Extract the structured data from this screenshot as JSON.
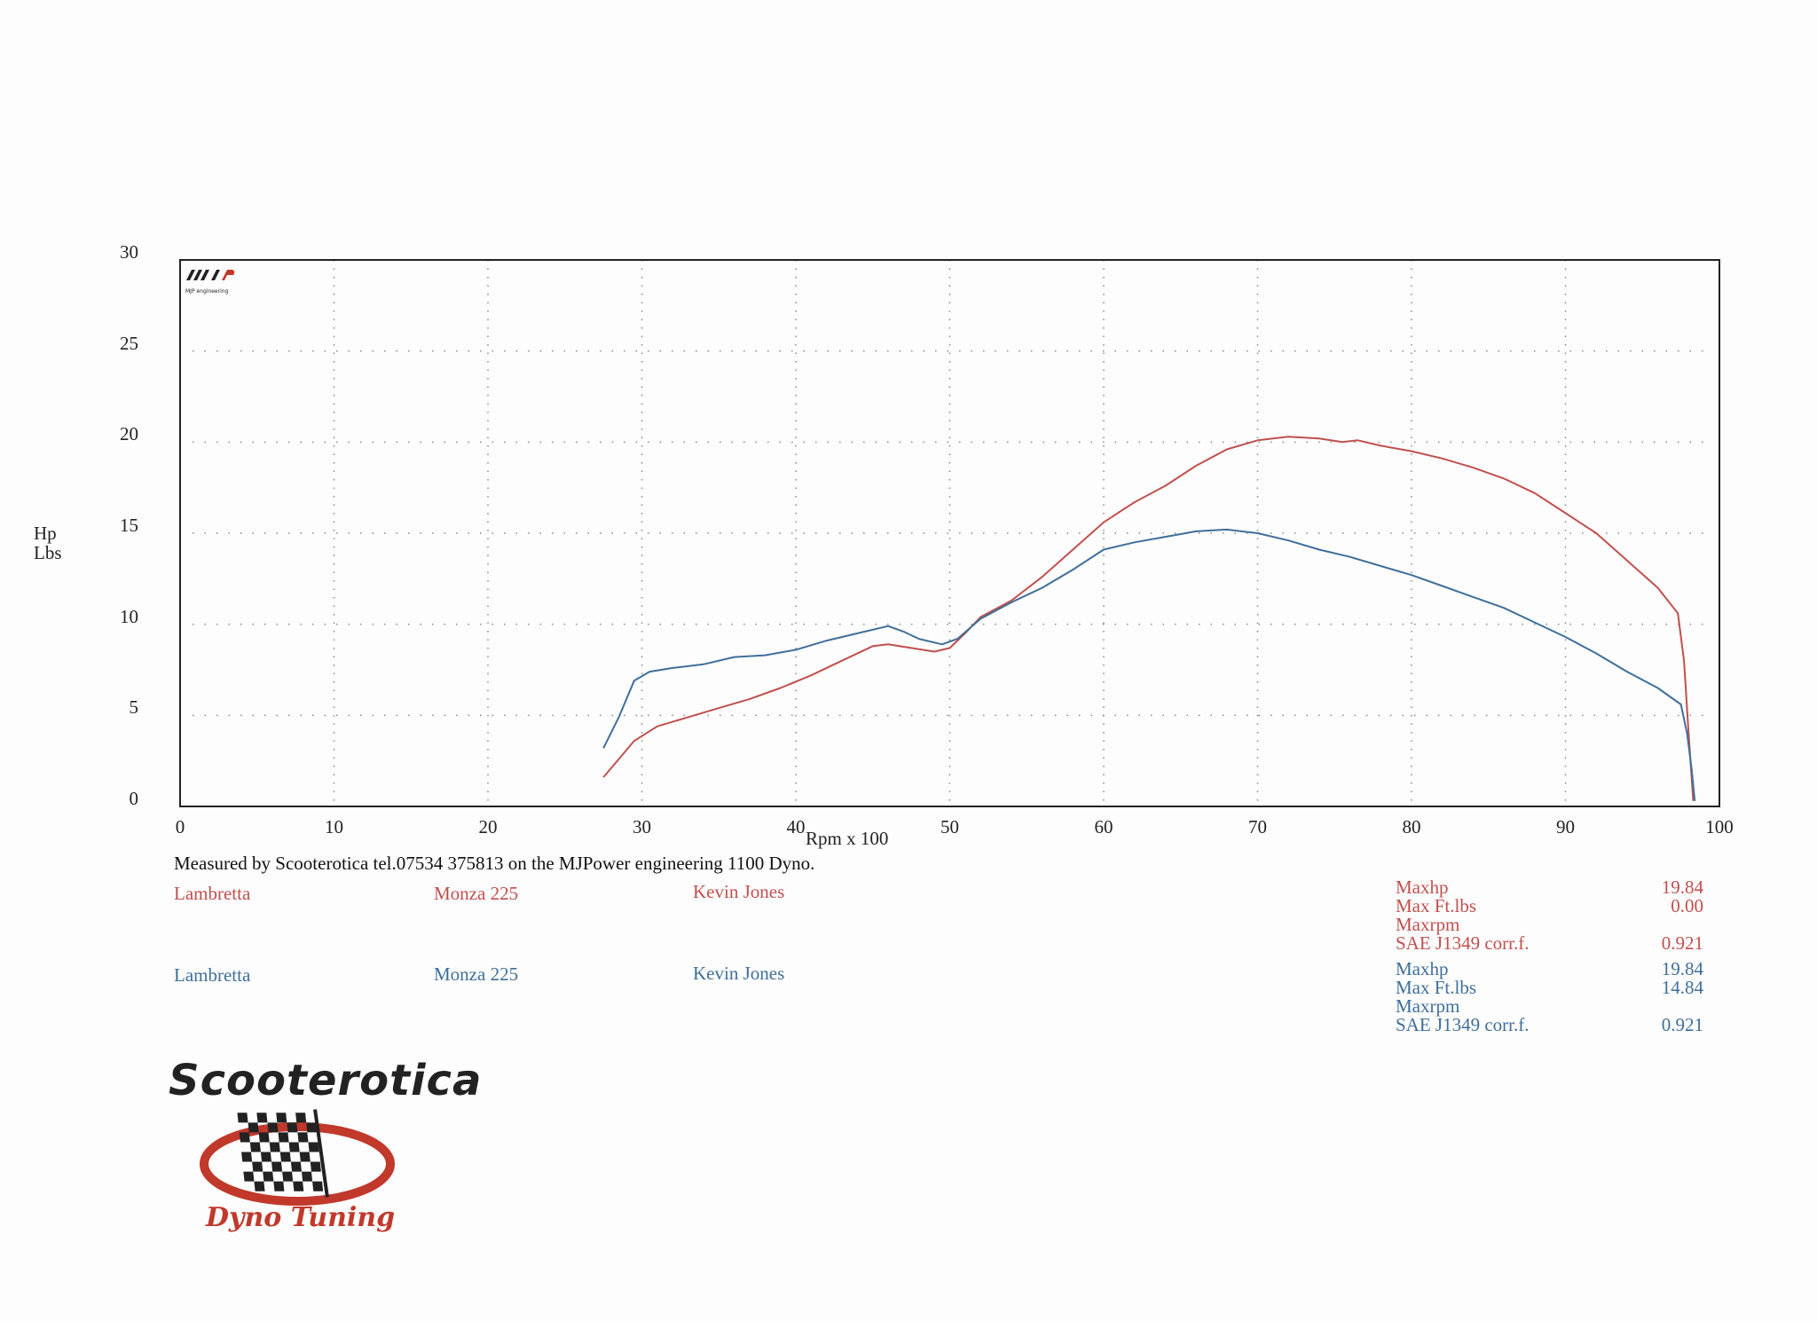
{
  "chart_data": {
    "type": "line",
    "xlabel": "Rpm x 100",
    "ylabel_lines": [
      "Hp",
      "Lbs"
    ],
    "xlim": [
      0,
      100
    ],
    "ylim": [
      0,
      30
    ],
    "x_ticks": [
      0,
      10,
      20,
      30,
      40,
      50,
      60,
      70,
      80,
      90,
      100
    ],
    "y_ticks": [
      0,
      5,
      10,
      15,
      20,
      25,
      30
    ],
    "grid": "dotted",
    "series": [
      {
        "color": "#c0504d",
        "points": [
          [
            27.5,
            1.6
          ],
          [
            28.5,
            2.6
          ],
          [
            29.5,
            3.6
          ],
          [
            31,
            4.4
          ],
          [
            33,
            4.9
          ],
          [
            35,
            5.4
          ],
          [
            37,
            5.9
          ],
          [
            39,
            6.5
          ],
          [
            41,
            7.2
          ],
          [
            43,
            8.0
          ],
          [
            45,
            8.8
          ],
          [
            46,
            8.9
          ],
          [
            47.5,
            8.7
          ],
          [
            49,
            8.5
          ],
          [
            50,
            8.7
          ],
          [
            51,
            9.5
          ],
          [
            52,
            10.4
          ],
          [
            54,
            11.3
          ],
          [
            56,
            12.6
          ],
          [
            58,
            14.1
          ],
          [
            60,
            15.6
          ],
          [
            62,
            16.7
          ],
          [
            64,
            17.6
          ],
          [
            66,
            18.7
          ],
          [
            68,
            19.6
          ],
          [
            70,
            20.1
          ],
          [
            72,
            20.3
          ],
          [
            74,
            20.2
          ],
          [
            75.5,
            20.0
          ],
          [
            76.5,
            20.1
          ],
          [
            78,
            19.8
          ],
          [
            80,
            19.5
          ],
          [
            82,
            19.1
          ],
          [
            84,
            18.6
          ],
          [
            86,
            18.0
          ],
          [
            88,
            17.2
          ],
          [
            90,
            16.1
          ],
          [
            92,
            15.0
          ],
          [
            94,
            13.5
          ],
          [
            96,
            12.0
          ],
          [
            97.3,
            10.6
          ],
          [
            97.7,
            8.0
          ],
          [
            98,
            4.0
          ],
          [
            98.3,
            0.3
          ]
        ]
      },
      {
        "color": "#3f6e9a",
        "points": [
          [
            27.5,
            3.2
          ],
          [
            28.5,
            4.9
          ],
          [
            29.5,
            6.9
          ],
          [
            30.5,
            7.4
          ],
          [
            32,
            7.6
          ],
          [
            34,
            7.8
          ],
          [
            36,
            8.2
          ],
          [
            38,
            8.3
          ],
          [
            40,
            8.6
          ],
          [
            42,
            9.1
          ],
          [
            44,
            9.5
          ],
          [
            46,
            9.9
          ],
          [
            47,
            9.6
          ],
          [
            48,
            9.2
          ],
          [
            49.5,
            8.9
          ],
          [
            50.5,
            9.2
          ],
          [
            52,
            10.3
          ],
          [
            54,
            11.2
          ],
          [
            56,
            12.0
          ],
          [
            58,
            13.0
          ],
          [
            60,
            14.1
          ],
          [
            62,
            14.5
          ],
          [
            64,
            14.8
          ],
          [
            66,
            15.1
          ],
          [
            68,
            15.2
          ],
          [
            70,
            15.0
          ],
          [
            72,
            14.6
          ],
          [
            74,
            14.1
          ],
          [
            76,
            13.7
          ],
          [
            78,
            13.2
          ],
          [
            80,
            12.7
          ],
          [
            82,
            12.1
          ],
          [
            84,
            11.5
          ],
          [
            86,
            10.9
          ],
          [
            88,
            10.1
          ],
          [
            90,
            9.3
          ],
          [
            92,
            8.4
          ],
          [
            94,
            7.4
          ],
          [
            96,
            6.5
          ],
          [
            97.5,
            5.6
          ],
          [
            97.9,
            4.0
          ],
          [
            98.2,
            2.0
          ],
          [
            98.4,
            0.3
          ]
        ]
      }
    ]
  },
  "measured_by": "Measured by Scooterotica tel.07534 375813 on the MJPower engineering 1100 Dyno.",
  "runs": [
    {
      "make": "Lambretta",
      "model": "Monza 225",
      "owner": "Kevin Jones",
      "color": "#c0504d",
      "stats": [
        {
          "label": "Maxhp",
          "value": "19.84"
        },
        {
          "label": "Max Ft.lbs",
          "value": "0.00"
        },
        {
          "label": "Maxrpm",
          "value": ""
        },
        {
          "label": "SAE J1349 corr.f.",
          "value": "0.921"
        }
      ]
    },
    {
      "make": "Lambretta",
      "model": "Monza 225",
      "owner": "Kevin Jones",
      "color": "#3f6e9a",
      "stats": [
        {
          "label": "Maxhp",
          "value": "19.84"
        },
        {
          "label": "Max Ft.lbs",
          "value": "14.84"
        },
        {
          "label": "Maxrpm",
          "value": ""
        },
        {
          "label": "SAE J1349 corr.f.",
          "value": "0.921"
        }
      ]
    }
  ],
  "chart_logo": {
    "text": "MJP engineering"
  },
  "logo": {
    "title": "Scooterotica",
    "subtitle": "Dyno Tuning"
  }
}
